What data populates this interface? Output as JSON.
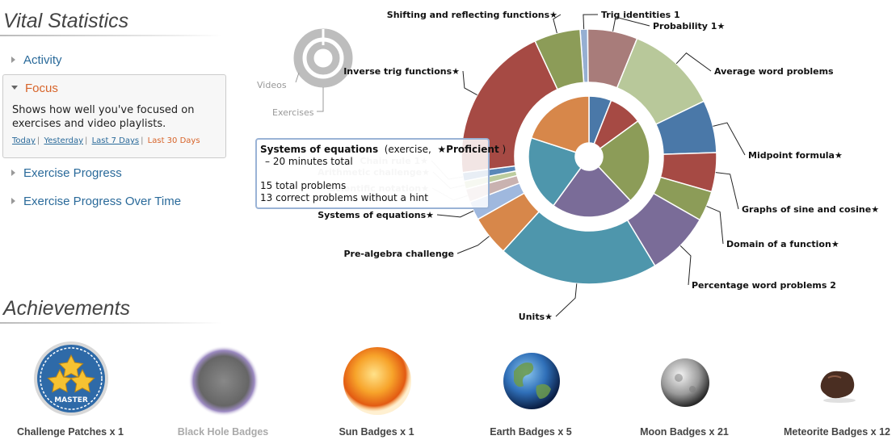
{
  "vital": {
    "title": "Vital Statistics",
    "nav": [
      {
        "label": "Activity"
      },
      {
        "label": "Focus",
        "expanded": true
      },
      {
        "label": "Exercise Progress"
      },
      {
        "label": "Exercise Progress Over Time"
      }
    ],
    "focus_desc": "Shows how well you've focused on exercises and video playlists.",
    "ranges": [
      "Today",
      "Yesterday",
      "Last 7 Days",
      "Last 30 Days"
    ],
    "active_range": "Last 30 Days"
  },
  "legend": {
    "videos": "Videos",
    "exercises": "Exercises"
  },
  "colors": {
    "accent": "#d7642a",
    "link": "#2a6a9a",
    "tooltip_border": "#9ab3d6"
  },
  "chart_data": {
    "type": "pie",
    "inner_ring": [
      {
        "value": 6,
        "color": "#4a78a8"
      },
      {
        "value": 9,
        "color": "#a64a44"
      },
      {
        "value": 23,
        "color": "#8c9c58"
      },
      {
        "value": 22,
        "color": "#7a6c98"
      },
      {
        "value": 20,
        "color": "#4e96ac"
      },
      {
        "value": 20,
        "color": "#d7874a"
      }
    ],
    "outer_ring": [
      {
        "label": "Trig identities 1",
        "value": 1.4,
        "color": "#96afd2"
      },
      {
        "label": "Probability 1★",
        "value": 9.3,
        "color": "#a87c7a"
      },
      {
        "label": "Average word problems",
        "value": 17.2,
        "color": "#b8c89a"
      },
      {
        "label": "Midpoint formula★",
        "value": 9.8,
        "color": "#4a78a8"
      },
      {
        "label": "Graphs of sine and cosine★",
        "value": 7.3,
        "color": "#a64a44"
      },
      {
        "label": "Domain of a function★",
        "value": 5.6,
        "color": "#8c9c58"
      },
      {
        "label": "Percentage word problems 2",
        "value": 11.9,
        "color": "#7a6c98"
      },
      {
        "label": "Units★",
        "value": 30,
        "color": "#4e96ac"
      },
      {
        "label": "Pre-algebra challenge",
        "value": 7.5,
        "color": "#d7874a"
      },
      {
        "label": "Systems of equations★",
        "value": 3.5,
        "color": "#9fb8de"
      },
      {
        "label": "Scientific notation★",
        "value": 2.5,
        "color": "#c9b2b0"
      },
      {
        "label": "Arithmetic challenge★",
        "value": 1.5,
        "color": "#bccc9e"
      },
      {
        "label": "Chain rule 1★",
        "value": 1.6,
        "color": "#5a88b8"
      },
      {
        "label": "Inverse trig functions★",
        "value": 29.5,
        "color": "#a64a44"
      },
      {
        "label": "Shifting and reflecting functions★",
        "value": 8.6,
        "color": "#8c9c58"
      }
    ]
  },
  "tooltip": {
    "name": "Systems of equations",
    "kind": "(exercise,",
    "status": "★Proficient",
    "close": ")",
    "time": "– 20 minutes total",
    "problems": "15 total problems",
    "correct": "13 correct problems without a hint"
  },
  "achievements": {
    "title": "Achievements",
    "badges": [
      {
        "label": "Challenge Patches x 1",
        "icon": "master-patch-icon",
        "dim": false
      },
      {
        "label": "Black Hole Badges",
        "icon": "black-hole-icon",
        "dim": true
      },
      {
        "label": "Sun Badges x 1",
        "icon": "sun-icon",
        "dim": false
      },
      {
        "label": "Earth Badges x 5",
        "icon": "earth-icon",
        "dim": false
      },
      {
        "label": "Moon Badges x 21",
        "icon": "moon-icon",
        "dim": false
      },
      {
        "label": "Meteorite Badges x 12",
        "icon": "meteorite-icon",
        "dim": false
      }
    ],
    "patch_text": "MASTER"
  }
}
